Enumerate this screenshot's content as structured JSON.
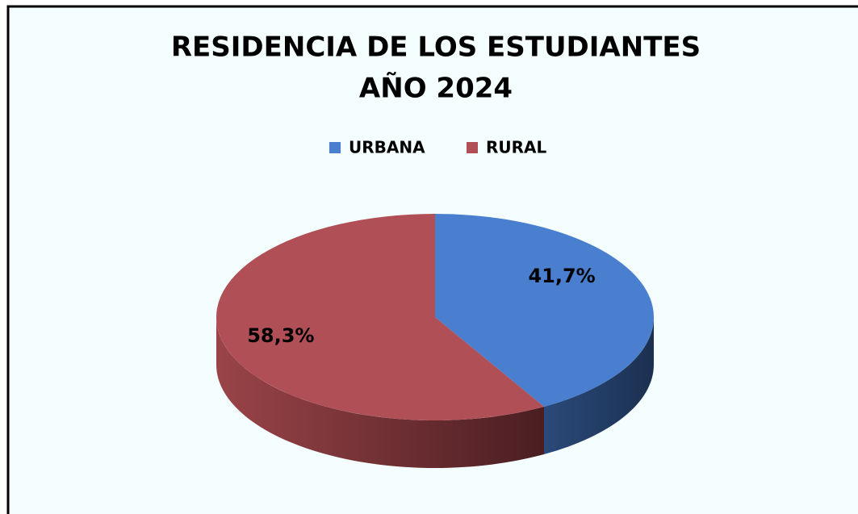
{
  "chart_data": {
    "type": "pie",
    "title": [
      "RESIDENCIA DE LOS ESTUDIANTES",
      "AÑO 2024"
    ],
    "categories": [
      "URBANA",
      "RURAL"
    ],
    "values": [
      41.7,
      58.3
    ],
    "value_labels": [
      "41,7%",
      "58,3%"
    ],
    "colors": [
      "#4a7fd0",
      "#b04f55"
    ],
    "legend": "top"
  }
}
